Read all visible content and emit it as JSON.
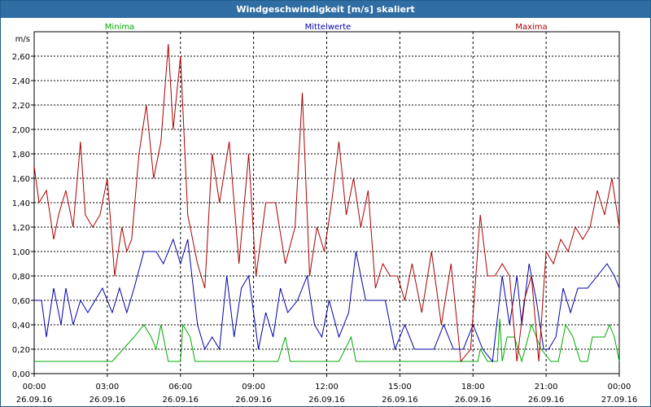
{
  "window": {
    "title": "Windgeschwindigkeit [m/s] skaliert"
  },
  "chart_data": {
    "type": "line",
    "title": "Windgeschwindigkeit [m/s] skaliert",
    "ylabel": "m/s",
    "xlabel": "",
    "ylim": [
      0,
      2.8
    ],
    "xlim": [
      0,
      24
    ],
    "grid": true,
    "y_ticks": [
      {
        "v": 0.0,
        "label": "0,00"
      },
      {
        "v": 0.2,
        "label": "0,20"
      },
      {
        "v": 0.4,
        "label": "0,40"
      },
      {
        "v": 0.6,
        "label": "0,60"
      },
      {
        "v": 0.8,
        "label": "0,80"
      },
      {
        "v": 1.0,
        "label": "1,00"
      },
      {
        "v": 1.2,
        "label": "1,20"
      },
      {
        "v": 1.4,
        "label": "1,40"
      },
      {
        "v": 1.6,
        "label": "1,60"
      },
      {
        "v": 1.8,
        "label": "1,80"
      },
      {
        "v": 2.0,
        "label": "2,00"
      },
      {
        "v": 2.2,
        "label": "2,20"
      },
      {
        "v": 2.4,
        "label": "2,40"
      },
      {
        "v": 2.6,
        "label": "2,60"
      }
    ],
    "x_ticks": [
      {
        "v": 0,
        "time": "00:00",
        "date": "26.09.16"
      },
      {
        "v": 3,
        "time": "03:00",
        "date": "26.09.16"
      },
      {
        "v": 6,
        "time": "06:00",
        "date": "26.09.16"
      },
      {
        "v": 9,
        "time": "09:00",
        "date": "26.09.16"
      },
      {
        "v": 12,
        "time": "12:00",
        "date": "26.09.16"
      },
      {
        "v": 15,
        "time": "15:00",
        "date": "26.09.16"
      },
      {
        "v": 18,
        "time": "18:00",
        "date": "26.09.16"
      },
      {
        "v": 21,
        "time": "21:00",
        "date": "26.09.16"
      },
      {
        "v": 24,
        "time": "00:00",
        "date": "27.09.16"
      }
    ],
    "legend_position": "top",
    "series": [
      {
        "name": "Minima",
        "color": "#00aa00",
        "x": [
          0,
          3.2,
          4.1,
          4.5,
          4.8,
          5.0,
          5.2,
          5.5,
          6.0,
          6.1,
          6.4,
          6.6,
          9.5,
          10.0,
          10.3,
          10.5,
          10.8,
          12.5,
          13.0,
          13.2,
          13.6,
          18.2,
          18.3,
          18.6,
          19.0,
          19.1,
          19.2,
          19.4,
          19.7,
          20.0,
          20.4,
          20.8,
          21.2,
          21.5,
          21.8,
          22.1,
          22.4,
          22.7,
          22.9,
          23.2,
          23.4,
          23.6,
          23.8,
          24.0
        ],
        "y": [
          0.1,
          0.1,
          0.3,
          0.4,
          0.3,
          0.2,
          0.4,
          0.1,
          0.1,
          0.4,
          0.3,
          0.1,
          0.1,
          0.1,
          0.3,
          0.1,
          0.1,
          0.1,
          0.3,
          0.1,
          0.1,
          0.1,
          0.2,
          0.1,
          0.1,
          0.45,
          0.1,
          0.3,
          0.3,
          0.1,
          0.4,
          0.2,
          0.1,
          0.1,
          0.4,
          0.3,
          0.1,
          0.1,
          0.3,
          0.3,
          0.3,
          0.4,
          0.3,
          0.1
        ]
      },
      {
        "name": "Mittelwerte",
        "color": "#0000aa",
        "x": [
          0,
          0.3,
          0.5,
          0.8,
          1.1,
          1.3,
          1.6,
          1.9,
          2.2,
          2.5,
          2.8,
          3.2,
          3.5,
          3.8,
          4.1,
          4.5,
          5.0,
          5.3,
          5.7,
          6.0,
          6.3,
          6.7,
          7.0,
          7.3,
          7.6,
          7.9,
          8.2,
          8.5,
          8.8,
          9.2,
          9.5,
          9.8,
          10.1,
          10.4,
          10.8,
          11.2,
          11.5,
          11.8,
          12.1,
          12.5,
          12.9,
          13.2,
          13.6,
          14.0,
          14.4,
          14.8,
          15.2,
          15.6,
          16.0,
          16.4,
          16.8,
          17.2,
          17.6,
          18.0,
          18.4,
          18.8,
          19.2,
          19.5,
          19.8,
          20.0,
          20.3,
          20.6,
          20.9,
          21.1,
          21.4,
          21.7,
          22.0,
          22.3,
          22.7,
          23.1,
          23.5,
          23.8,
          24.0
        ],
        "y": [
          0.6,
          0.6,
          0.3,
          0.7,
          0.4,
          0.7,
          0.4,
          0.6,
          0.5,
          0.6,
          0.7,
          0.5,
          0.7,
          0.5,
          0.7,
          1.0,
          1.0,
          0.9,
          1.1,
          0.9,
          1.1,
          0.4,
          0.2,
          0.3,
          0.2,
          0.8,
          0.3,
          0.7,
          0.8,
          0.2,
          0.5,
          0.3,
          0.7,
          0.5,
          0.6,
          0.8,
          0.4,
          0.3,
          0.6,
          0.3,
          0.5,
          1.0,
          0.6,
          0.6,
          0.6,
          0.2,
          0.4,
          0.2,
          0.2,
          0.2,
          0.4,
          0.2,
          0.2,
          0.4,
          0.2,
          0.1,
          0.8,
          0.4,
          0.8,
          0.4,
          0.9,
          0.6,
          0.2,
          0.2,
          0.3,
          0.7,
          0.5,
          0.7,
          0.7,
          0.8,
          0.9,
          0.8,
          0.7
        ]
      },
      {
        "name": "Maxima",
        "color": "#aa0000",
        "x": [
          0,
          0.2,
          0.5,
          0.8,
          1.0,
          1.3,
          1.6,
          1.9,
          2.1,
          2.4,
          2.7,
          3.0,
          3.3,
          3.6,
          3.8,
          4.0,
          4.3,
          4.6,
          4.9,
          5.2,
          5.5,
          5.7,
          6.0,
          6.3,
          6.7,
          7.0,
          7.3,
          7.6,
          8.0,
          8.4,
          8.8,
          9.1,
          9.5,
          9.9,
          10.3,
          10.7,
          11.0,
          11.3,
          11.6,
          11.9,
          12.2,
          12.5,
          12.8,
          13.1,
          13.4,
          13.7,
          14.0,
          14.3,
          14.6,
          14.9,
          15.2,
          15.5,
          15.9,
          16.3,
          16.7,
          17.1,
          17.5,
          17.9,
          18.3,
          18.6,
          18.9,
          19.2,
          19.5,
          19.8,
          20.1,
          20.4,
          20.7,
          21.0,
          21.3,
          21.6,
          21.9,
          22.2,
          22.5,
          22.8,
          23.1,
          23.4,
          23.7,
          24.0
        ],
        "y": [
          1.7,
          1.4,
          1.5,
          1.1,
          1.3,
          1.5,
          1.2,
          1.9,
          1.3,
          1.2,
          1.3,
          1.6,
          0.8,
          1.2,
          1.0,
          1.1,
          1.8,
          2.2,
          1.6,
          1.9,
          2.7,
          2.0,
          2.6,
          1.3,
          0.9,
          0.7,
          1.8,
          1.4,
          1.9,
          0.9,
          1.8,
          0.8,
          1.4,
          1.4,
          0.9,
          1.2,
          2.3,
          0.8,
          1.2,
          1.0,
          1.4,
          1.9,
          1.3,
          1.6,
          1.2,
          1.5,
          0.7,
          0.9,
          0.8,
          0.8,
          0.6,
          0.9,
          0.5,
          1.0,
          0.4,
          0.9,
          0.1,
          0.2,
          1.3,
          0.8,
          0.8,
          0.9,
          0.8,
          0.1,
          0.6,
          0.8,
          0.1,
          1.0,
          0.9,
          1.1,
          1.0,
          1.2,
          1.1,
          1.2,
          1.5,
          1.3,
          1.6,
          1.2
        ]
      }
    ]
  }
}
